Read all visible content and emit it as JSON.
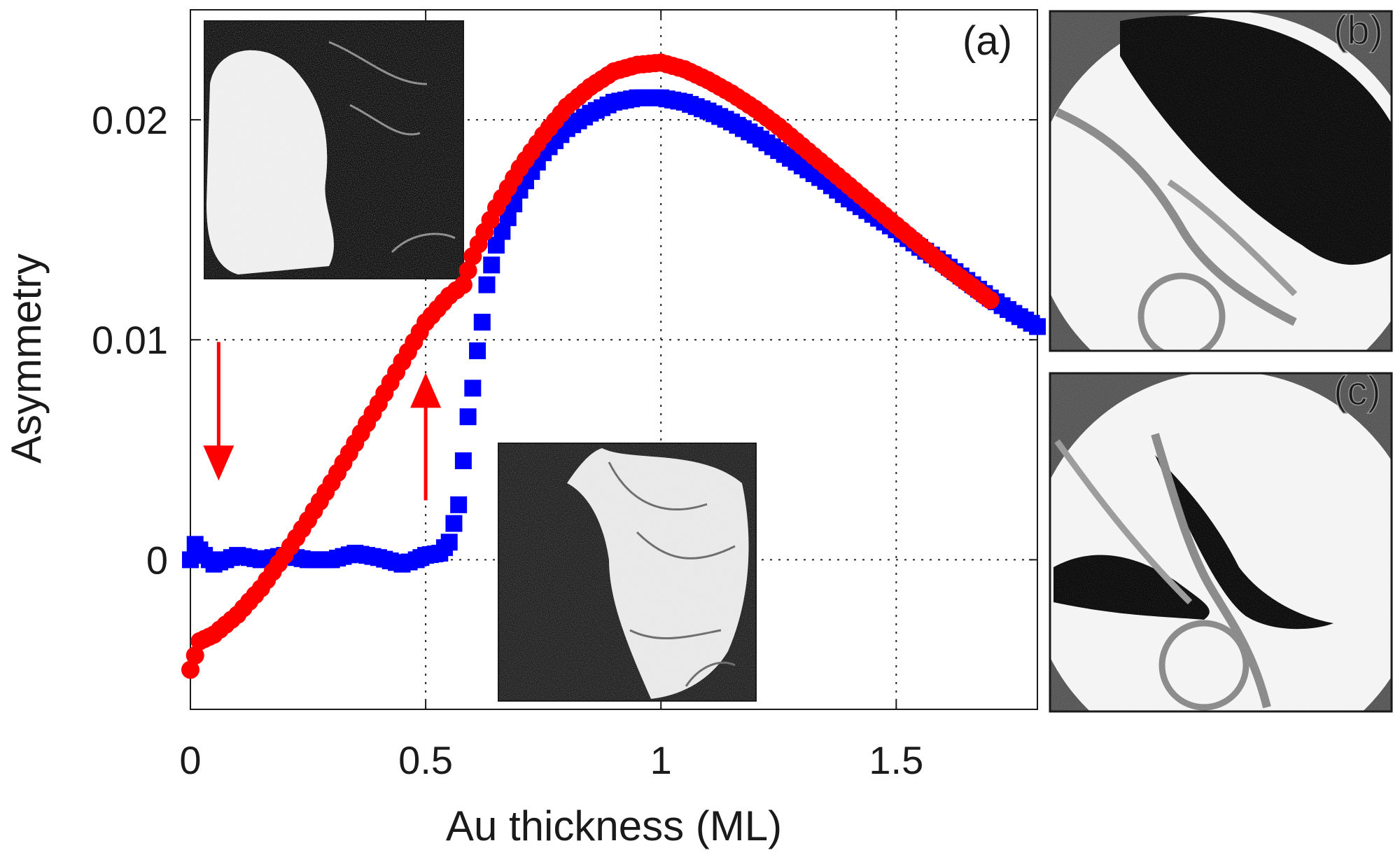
{
  "chart_data": {
    "type": "scatter",
    "title": "",
    "xlabel": "Au thickness (ML)",
    "ylabel": "Asymmetry",
    "xlim": [
      0,
      1.8
    ],
    "ylim": [
      -0.0068,
      0.025
    ],
    "xticks": [
      0,
      0.5,
      1,
      1.5
    ],
    "xtick_labels": [
      "0",
      "0.5",
      "1",
      "1.5"
    ],
    "yticks": [
      0,
      0.01,
      0.02
    ],
    "ytick_labels": [
      "0",
      "0.01",
      "0.02"
    ],
    "grid": true,
    "grid_style": "dotted",
    "panel_label": "(a)",
    "series": [
      {
        "color": "#ff0000",
        "marker": "circle",
        "x": [
          0.0,
          0.02,
          0.05,
          0.1,
          0.15,
          0.2,
          0.25,
          0.3,
          0.35,
          0.4,
          0.45,
          0.5,
          0.55,
          0.58,
          0.6,
          0.65,
          0.7,
          0.75,
          0.8,
          0.85,
          0.9,
          0.95,
          1.0,
          1.05,
          1.1,
          1.15,
          1.2,
          1.25,
          1.3,
          1.35,
          1.4,
          1.45,
          1.5,
          1.55,
          1.6,
          1.65,
          1.7
        ],
        "y": [
          -0.005,
          -0.0037,
          -0.0034,
          -0.0025,
          -0.0013,
          0.0002,
          0.0018,
          0.0035,
          0.0053,
          0.0071,
          0.009,
          0.0108,
          0.012,
          0.0125,
          0.0138,
          0.016,
          0.0178,
          0.0193,
          0.0206,
          0.0215,
          0.0222,
          0.0225,
          0.0226,
          0.0223,
          0.0218,
          0.0212,
          0.0205,
          0.0197,
          0.0188,
          0.0179,
          0.017,
          0.0161,
          0.0152,
          0.0143,
          0.0134,
          0.0126,
          0.0118
        ]
      },
      {
        "color": "#0000ff",
        "marker": "square",
        "x": [
          0.0,
          0.01,
          0.03,
          0.05,
          0.1,
          0.15,
          0.2,
          0.25,
          0.3,
          0.35,
          0.4,
          0.45,
          0.48,
          0.5,
          0.53,
          0.55,
          0.57,
          0.58,
          0.59,
          0.6,
          0.61,
          0.62,
          0.63,
          0.65,
          0.7,
          0.75,
          0.8,
          0.85,
          0.9,
          0.95,
          1.0,
          1.05,
          1.1,
          1.15,
          1.2,
          1.25,
          1.3,
          1.35,
          1.4,
          1.45,
          1.5,
          1.55,
          1.6,
          1.65,
          1.7,
          1.75,
          1.8
        ],
        "y": [
          0.0,
          0.0007,
          0.0002,
          -0.0002,
          0.0002,
          0.0,
          0.0002,
          0.0,
          0.0,
          0.0003,
          0.0001,
          -0.0002,
          0.0,
          0.0002,
          0.0003,
          0.0008,
          0.0025,
          0.0045,
          0.0065,
          0.0078,
          0.0095,
          0.0108,
          0.0125,
          0.0143,
          0.0168,
          0.0185,
          0.0196,
          0.0203,
          0.0208,
          0.021,
          0.021,
          0.0208,
          0.0204,
          0.0199,
          0.0193,
          0.0186,
          0.0179,
          0.0172,
          0.0164,
          0.0157,
          0.015,
          0.0142,
          0.0135,
          0.0127,
          0.0119,
          0.0112,
          0.0106
        ]
      }
    ],
    "annotations": [
      {
        "type": "arrow",
        "direction": "down",
        "color": "#ff0000",
        "x": 0.06,
        "y_from": 0.0099,
        "y_to": 0.0036
      },
      {
        "type": "arrow",
        "direction": "up",
        "color": "#ff0000",
        "x": 0.5,
        "y_from": 0.0027,
        "y_to": 0.0085
      }
    ]
  },
  "images": [
    {
      "panel_label": "",
      "description_icon": "domain-image-inset-top"
    },
    {
      "panel_label": "",
      "description_icon": "domain-image-inset-bottom"
    },
    {
      "panel_label": "(b)",
      "description_icon": "domain-image-b"
    },
    {
      "panel_label": "(c)",
      "description_icon": "domain-image-c"
    }
  ]
}
